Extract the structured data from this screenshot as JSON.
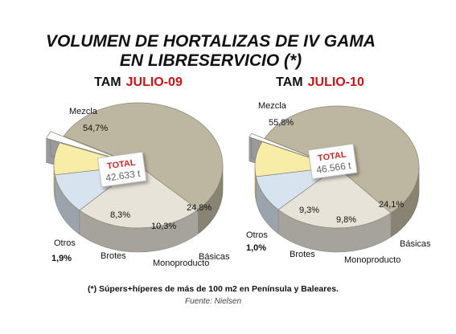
{
  "title": [
    "VOLUMEN DE HORTALIZAS DE IV GAMA",
    "EN LIBRESERVICIO (*)"
  ],
  "footnote": "(*) Súpers+híperes de más de 100 m2 en Península y Baleares.",
  "source": "Fuente: Nielsen",
  "colors": {
    "Mezcla": "#bdb6a0",
    "Básicas": "#e7e3d8",
    "Monoproducto": "#d7e3ef",
    "Brotes": "#f8eda6",
    "Otros": "#ffffff",
    "accent": "#c81414"
  },
  "chart_data": [
    {
      "type": "pie",
      "title_prefix": "TAM",
      "title_period": "JULIO-09",
      "total_label": "TOTAL",
      "total_value": "42.633 t",
      "slices": [
        {
          "name": "Mezcla",
          "value": 54.7,
          "display": "54,7%"
        },
        {
          "name": "Básicas",
          "value": 24.8,
          "display": "24,8%"
        },
        {
          "name": "Monoproducto",
          "value": 10.3,
          "display": "10,3%"
        },
        {
          "name": "Brotes",
          "value": 8.3,
          "display": "8,3%"
        },
        {
          "name": "Otros",
          "value": 1.9,
          "display": "1,9%"
        }
      ]
    },
    {
      "type": "pie",
      "title_prefix": "TAM",
      "title_period": "JULIO-10",
      "total_label": "TOTAL",
      "total_value": "46.566 t",
      "slices": [
        {
          "name": "Mezcla",
          "value": 55.8,
          "display": "55,8%"
        },
        {
          "name": "Básicas",
          "value": 24.1,
          "display": "24,1%"
        },
        {
          "name": "Monoproducto",
          "value": 9.8,
          "display": "9,8%"
        },
        {
          "name": "Brotes",
          "value": 9.3,
          "display": "9,3%"
        },
        {
          "name": "Otros",
          "value": 1.0,
          "display": "1,0%"
        }
      ]
    }
  ]
}
